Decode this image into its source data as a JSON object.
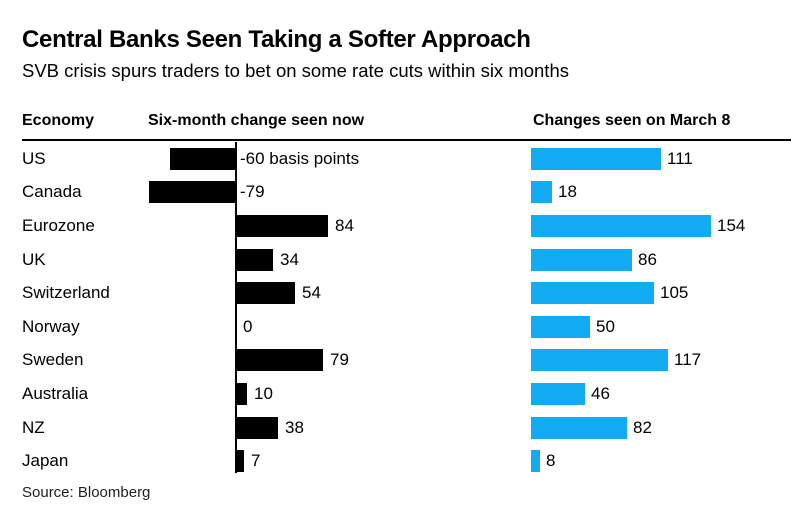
{
  "chart_data": {
    "type": "bar",
    "orientation": "horizontal",
    "title": "Central Banks Seen Taking a Softer Approach",
    "subtitle": "SVB crisis spurs traders to bet on some rate cuts within six months",
    "economy_label": "Economy",
    "unit": "basis points",
    "grid": false,
    "categories": [
      "US",
      "Canada",
      "Eurozone",
      "UK",
      "Switzerland",
      "Norway",
      "Sweden",
      "Australia",
      "NZ",
      "Japan"
    ],
    "series": [
      {
        "name": "Six-month change seen now",
        "color": "#000000",
        "values": [
          -60,
          -79,
          84,
          34,
          54,
          0,
          79,
          10,
          38,
          7
        ],
        "value_labels": [
          "-60 basis points",
          "-79",
          "84",
          "34",
          "54",
          "0",
          "79",
          "10",
          "38",
          "7"
        ]
      },
      {
        "name": "Changes seen on March 8",
        "color": "#12aaf0",
        "values": [
          111,
          18,
          154,
          86,
          105,
          50,
          117,
          46,
          82,
          8
        ],
        "value_labels": [
          "111",
          "18",
          "154",
          "86",
          "105",
          "50",
          "117",
          "46",
          "82",
          "8"
        ]
      }
    ],
    "source": "Source: Bloomberg"
  }
}
